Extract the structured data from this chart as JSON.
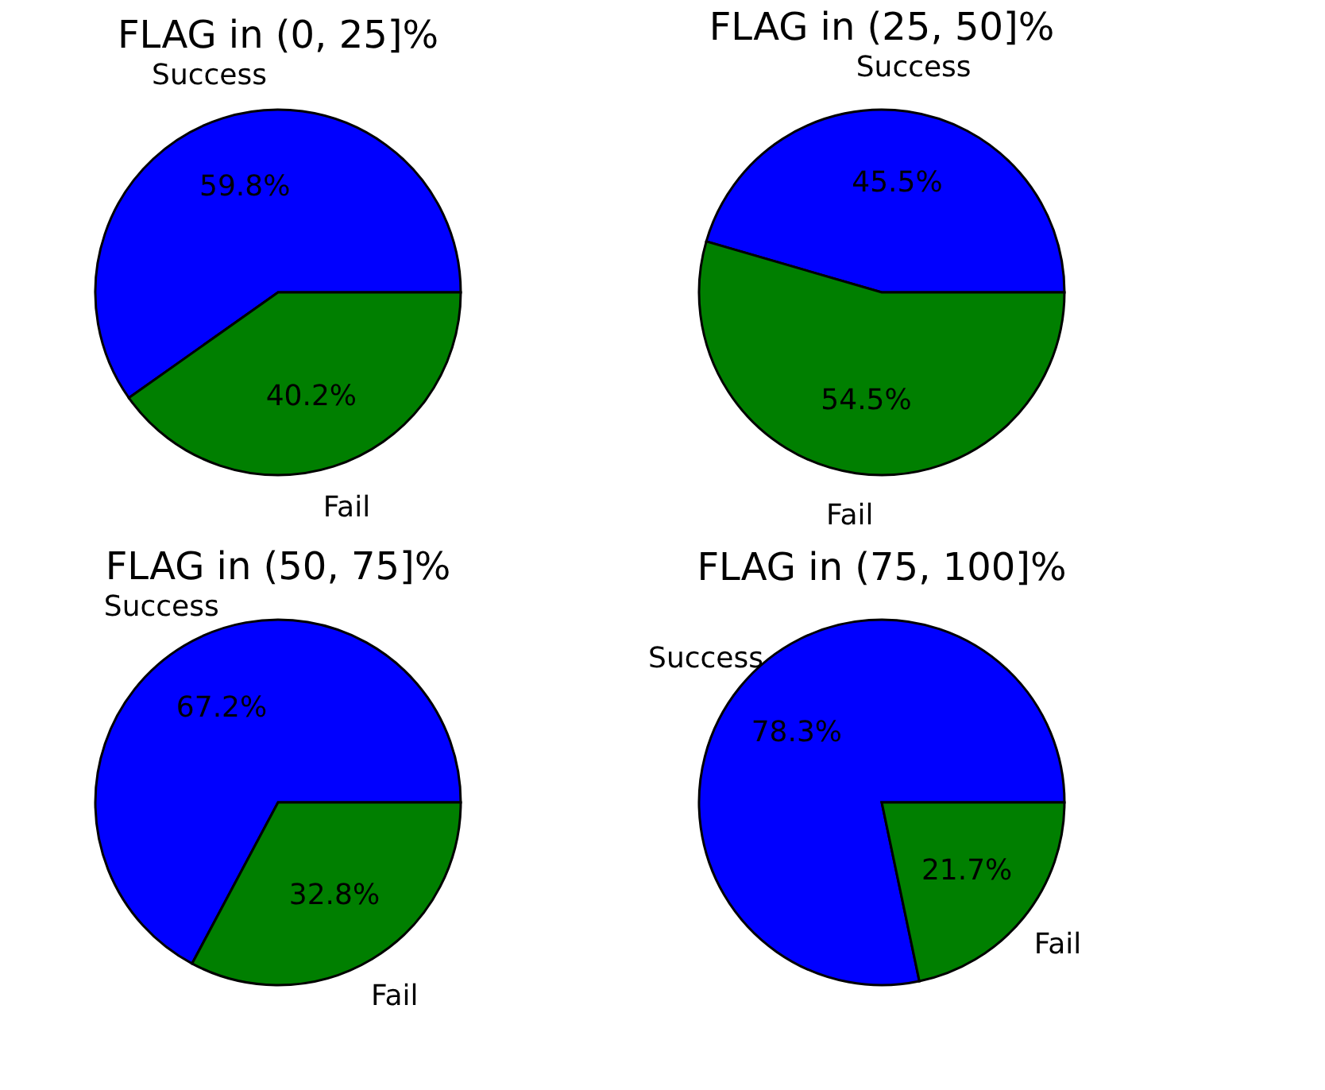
{
  "chart_data": [
    {
      "type": "pie",
      "title": "FLAG in (0, 25]%",
      "categories": [
        "Success",
        "Fail"
      ],
      "values": [
        59.8,
        40.2
      ],
      "colors": [
        "#0000ff",
        "#007f00"
      ],
      "value_labels": [
        "59.8%",
        "40.2%"
      ]
    },
    {
      "type": "pie",
      "title": "FLAG in (25, 50]%",
      "categories": [
        "Success",
        "Fail"
      ],
      "values": [
        45.5,
        54.5
      ],
      "colors": [
        "#0000ff",
        "#007f00"
      ],
      "value_labels": [
        "45.5%",
        "54.5%"
      ]
    },
    {
      "type": "pie",
      "title": "FLAG in (50, 75]%",
      "categories": [
        "Success",
        "Fail"
      ],
      "values": [
        67.2,
        32.8
      ],
      "colors": [
        "#0000ff",
        "#007f00"
      ],
      "value_labels": [
        "67.2%",
        "32.8%"
      ]
    },
    {
      "type": "pie",
      "title": "FLAG in (75, 100]%",
      "categories": [
        "Success",
        "Fail"
      ],
      "values": [
        78.3,
        21.7
      ],
      "colors": [
        "#0000ff",
        "#007f00"
      ],
      "value_labels": [
        "78.3%",
        "21.7%"
      ]
    }
  ]
}
